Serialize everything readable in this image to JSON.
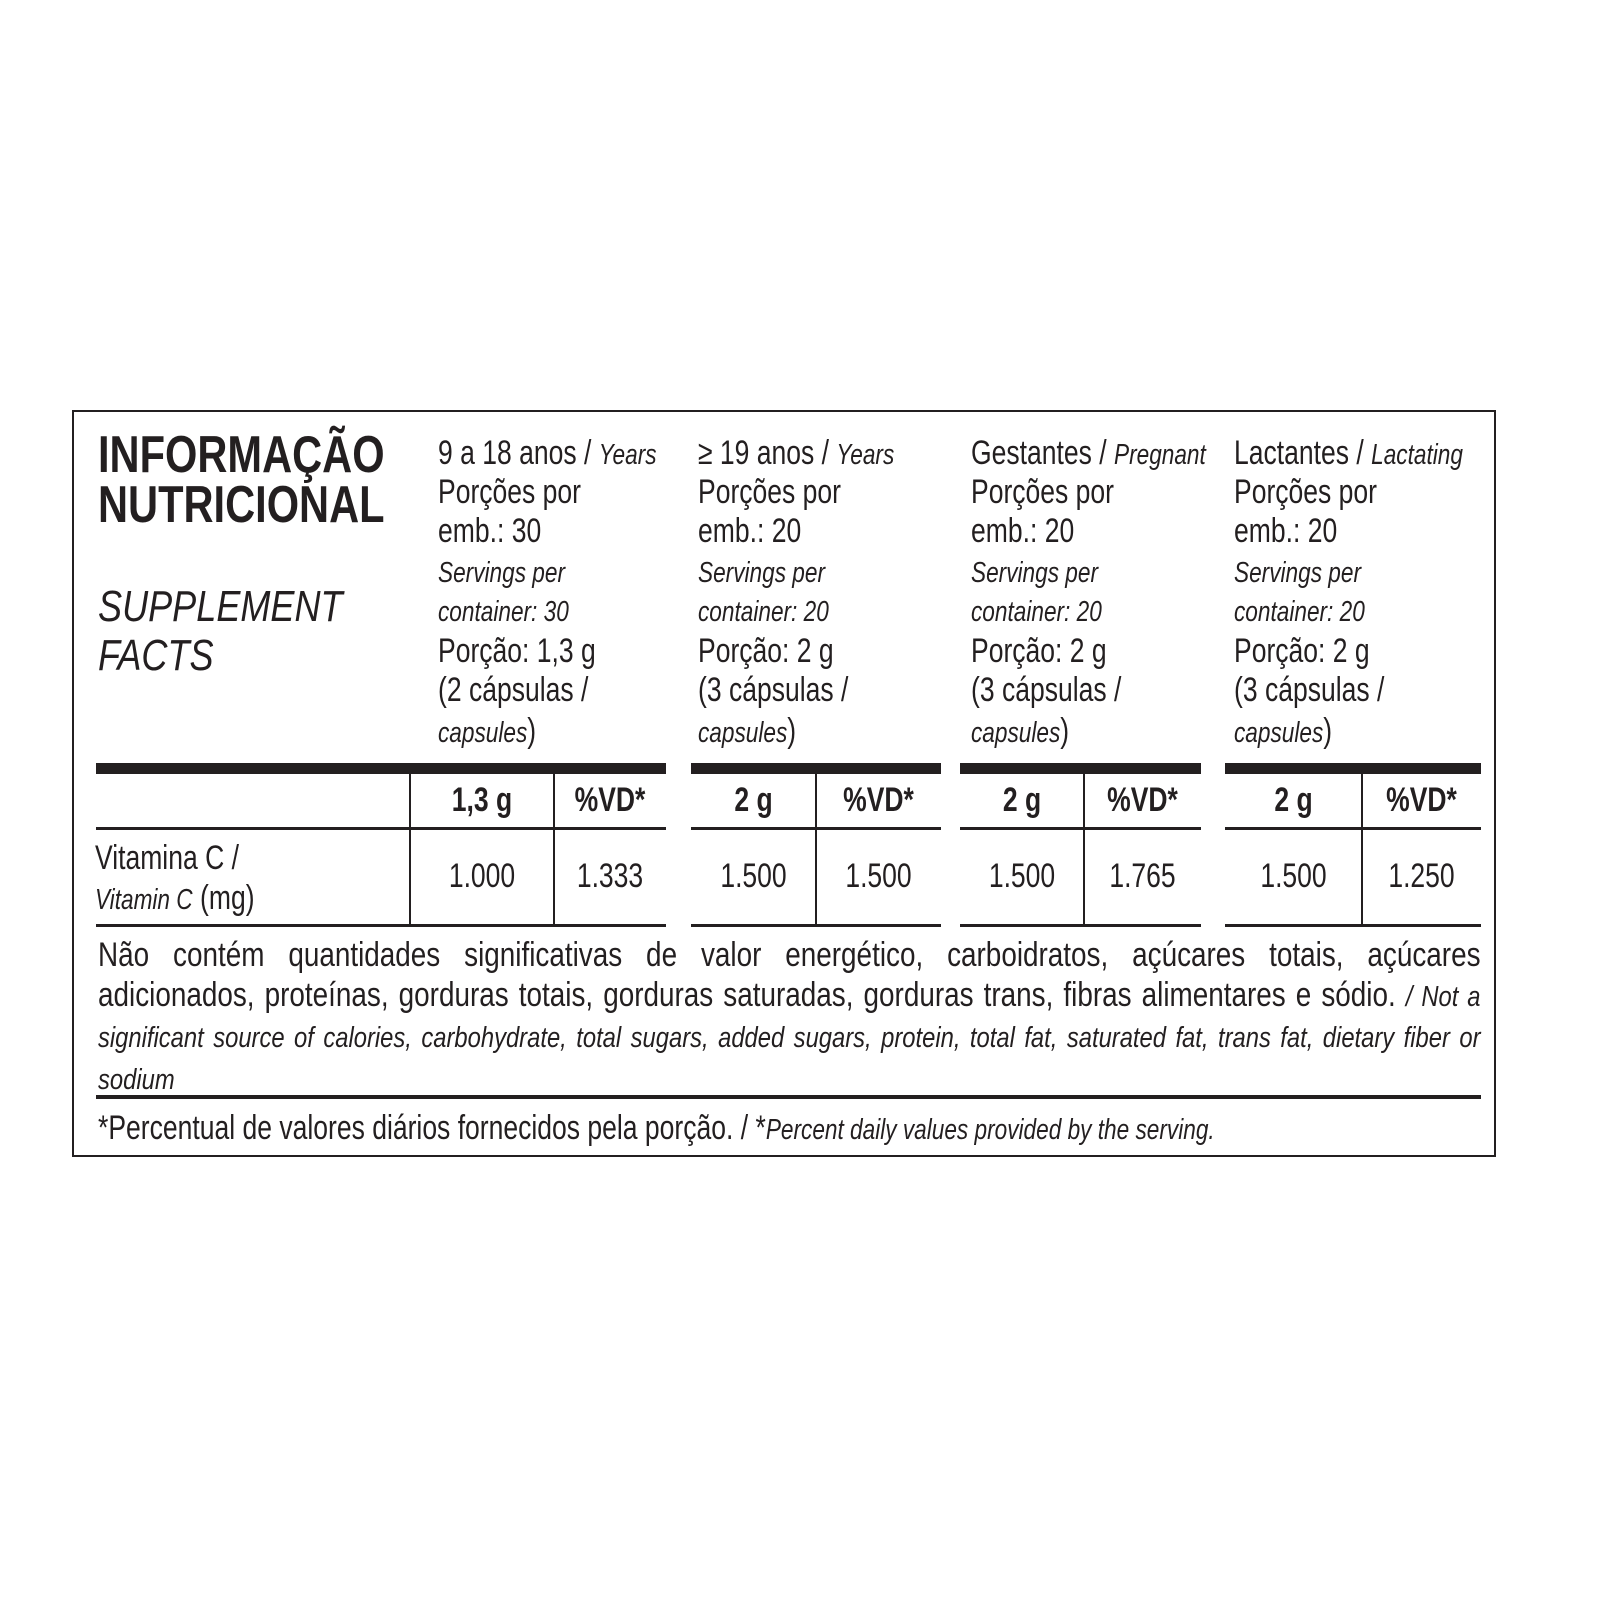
{
  "title": {
    "line1": "INFORMAÇÃO",
    "line2": "NUTRICIONAL",
    "sub1": "SUPPLEMENT",
    "sub2": "FACTS"
  },
  "columns": [
    {
      "group_pt": "9 a 18 anos",
      "group_en": "Years",
      "servings_pt_1": "Porções por",
      "servings_pt_2": "emb.: 30",
      "servings_en_1": "Servings per",
      "servings_en_2": "container: 30",
      "portion": "Porção: 1,3 g",
      "capsules_pt": "(2 cápsulas /",
      "capsules_en": "capsules",
      "close": ")",
      "amount_header": "1,3 g",
      "vd_header": "%VD*",
      "amount": "1.000",
      "vd": "1.333"
    },
    {
      "group_pt": "≥ 19 anos",
      "group_en": "Years",
      "servings_pt_1": "Porções por",
      "servings_pt_2": "emb.: 20",
      "servings_en_1": "Servings per",
      "servings_en_2": "container: 20",
      "portion": "Porção: 2 g",
      "capsules_pt": "(3 cápsulas /",
      "capsules_en": "capsules",
      "close": ")",
      "amount_header": "2 g",
      "vd_header": "%VD*",
      "amount": "1.500",
      "vd": "1.500"
    },
    {
      "group_pt": "Gestantes",
      "group_en": "Pregnant",
      "servings_pt_1": "Porções por",
      "servings_pt_2": "emb.: 20",
      "servings_en_1": "Servings per",
      "servings_en_2": "container: 20",
      "portion": "Porção: 2 g",
      "capsules_pt": "(3 cápsulas /",
      "capsules_en": "capsules",
      "close": ")",
      "amount_header": "2 g",
      "vd_header": "%VD*",
      "amount": "1.500",
      "vd": "1.765"
    },
    {
      "group_pt": "Lactantes",
      "group_en": "Lactating",
      "servings_pt_1": "Porções por",
      "servings_pt_2": "emb.: 20",
      "servings_en_1": "Servings per",
      "servings_en_2": "container: 20",
      "portion": "Porção: 2 g",
      "capsules_pt": "(3 cápsulas /",
      "capsules_en": "capsules",
      "close": ")",
      "amount_header": "2 g",
      "vd_header": "%VD*",
      "amount": "1.500",
      "vd": "1.250"
    }
  ],
  "nutrient": {
    "name_pt": "Vitamina C /",
    "name_en": "Vitamin C",
    "unit": "(mg)"
  },
  "notes": {
    "not_significant_pt": "Não contém quantidades significativas de valor energético, carboidratos, açúcares totais, açúcares adicionados, proteínas, gorduras totais, gorduras saturadas, gorduras trans, fibras alimentares e sódio.",
    "not_significant_en": "Not a significant source of calories, carbohydrate, total sugars, added sugars, protein, total fat, saturated fat, trans fat, dietary fiber or sodium",
    "footnote_pt": "*Percentual de valores diários fornecidos pela porção.",
    "footnote_en": "Percent daily values provided by the serving."
  }
}
